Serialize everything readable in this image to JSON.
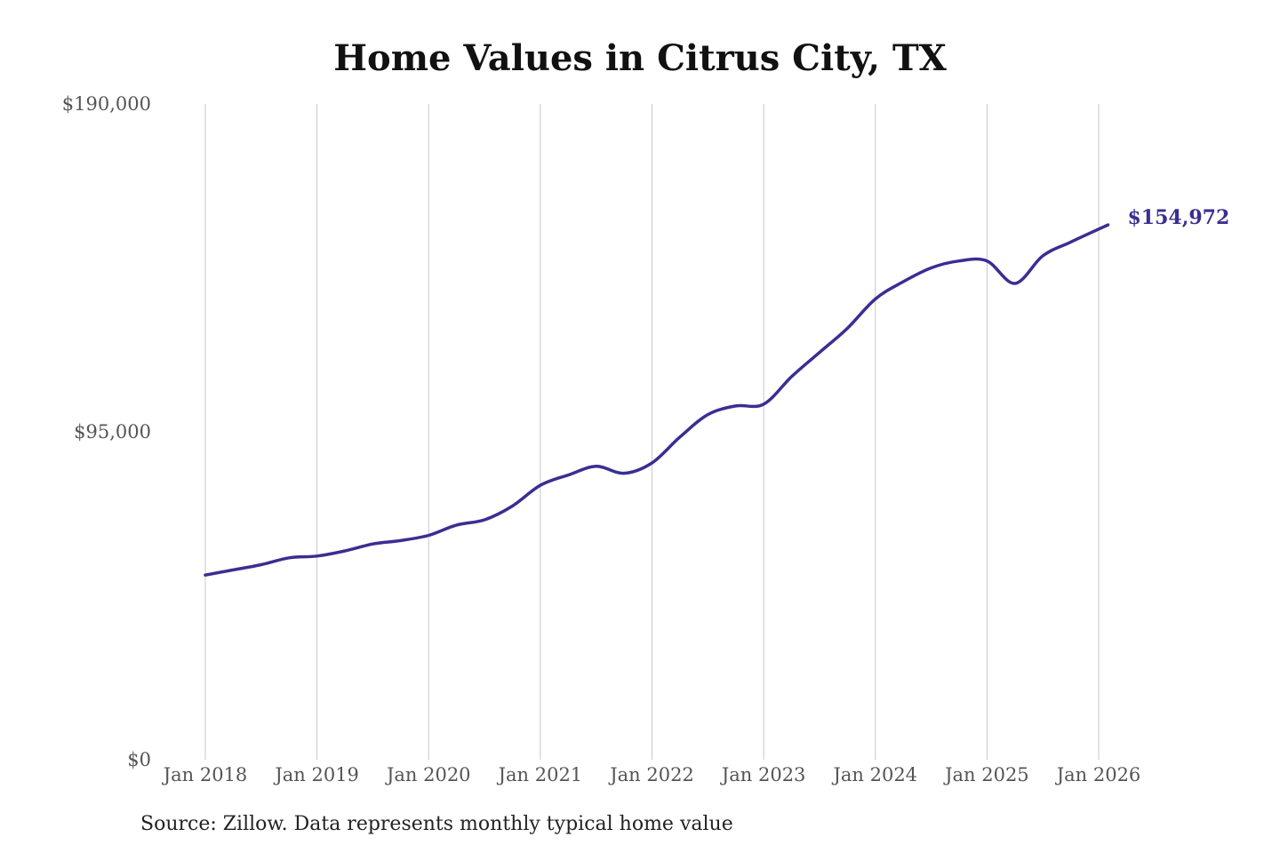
{
  "source_note": "Source: Zillow. Data represents monthly typical home value",
  "colors": {
    "line": "#3a2e92",
    "grid": "#c8c8c8",
    "tick_text": "#555555",
    "title": "#111111"
  },
  "chart_data": {
    "type": "line",
    "title": "Home Values in Citrus City, TX",
    "xlabel": "",
    "ylabel": "",
    "ylim": [
      0,
      190000
    ],
    "y_ticks": [
      {
        "value": 0,
        "label": "$0"
      },
      {
        "value": 95000,
        "label": "$95,000"
      },
      {
        "value": 190000,
        "label": "$190,000"
      }
    ],
    "x_ticks": [
      {
        "date": "2018-01",
        "label": "Jan 2018"
      },
      {
        "date": "2019-01",
        "label": "Jan 2019"
      },
      {
        "date": "2020-01",
        "label": "Jan 2020"
      },
      {
        "date": "2021-01",
        "label": "Jan 2021"
      },
      {
        "date": "2022-01",
        "label": "Jan 2022"
      },
      {
        "date": "2023-01",
        "label": "Jan 2023"
      },
      {
        "date": "2024-01",
        "label": "Jan 2024"
      },
      {
        "date": "2025-01",
        "label": "Jan 2025"
      },
      {
        "date": "2026-01",
        "label": "Jan 2026"
      }
    ],
    "grid": "vertical",
    "end_label": "$154,972",
    "series": [
      {
        "points": [
          {
            "x": "2018-01",
            "y": 53500
          },
          {
            "x": "2018-04",
            "y": 55000
          },
          {
            "x": "2018-07",
            "y": 56500
          },
          {
            "x": "2018-10",
            "y": 58500
          },
          {
            "x": "2019-01",
            "y": 59000
          },
          {
            "x": "2019-04",
            "y": 60500
          },
          {
            "x": "2019-07",
            "y": 62500
          },
          {
            "x": "2019-10",
            "y": 63500
          },
          {
            "x": "2020-01",
            "y": 65000
          },
          {
            "x": "2020-04",
            "y": 68000
          },
          {
            "x": "2020-07",
            "y": 69500
          },
          {
            "x": "2020-10",
            "y": 73500
          },
          {
            "x": "2021-01",
            "y": 79500
          },
          {
            "x": "2021-04",
            "y": 82500
          },
          {
            "x": "2021-07",
            "y": 85000
          },
          {
            "x": "2021-10",
            "y": 83000
          },
          {
            "x": "2022-01",
            "y": 86000
          },
          {
            "x": "2022-04",
            "y": 93500
          },
          {
            "x": "2022-07",
            "y": 100000
          },
          {
            "x": "2022-10",
            "y": 102500
          },
          {
            "x": "2023-01",
            "y": 103000
          },
          {
            "x": "2023-04",
            "y": 111000
          },
          {
            "x": "2023-07",
            "y": 118000
          },
          {
            "x": "2023-10",
            "y": 125000
          },
          {
            "x": "2024-01",
            "y": 133500
          },
          {
            "x": "2024-04",
            "y": 138500
          },
          {
            "x": "2024-07",
            "y": 142500
          },
          {
            "x": "2024-10",
            "y": 144500
          },
          {
            "x": "2025-01",
            "y": 144500
          },
          {
            "x": "2025-04",
            "y": 138000
          },
          {
            "x": "2025-07",
            "y": 146000
          },
          {
            "x": "2025-10",
            "y": 150000
          },
          {
            "x": "2026-02",
            "y": 154972
          }
        ]
      }
    ]
  }
}
